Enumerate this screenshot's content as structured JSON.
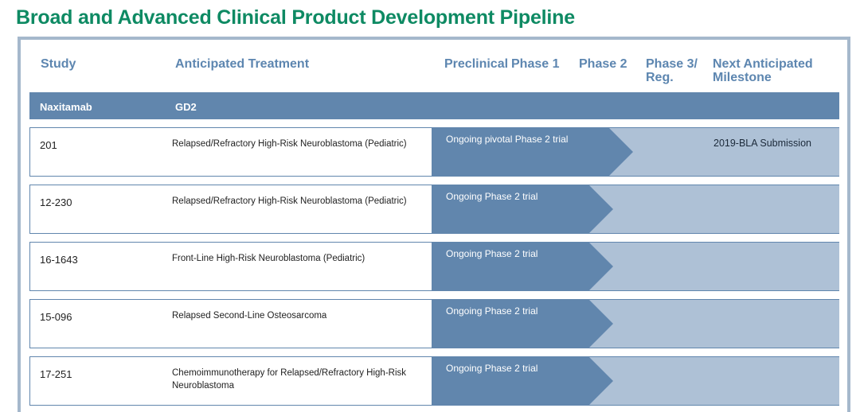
{
  "title": "Broad and Advanced Clinical Product Development Pipeline",
  "columns": {
    "study": "Study",
    "treatment": "Anticipated Treatment",
    "preclinical": "Preclinical",
    "phase1": "Phase 1",
    "phase2": "Phase 2",
    "phase3_line1": "Phase 3/",
    "phase3_line2": "Reg.",
    "milestone_line1": "Next Anticipated",
    "milestone_line2": "Milestone"
  },
  "agent": {
    "name": "Naxitamab",
    "target": "GD2"
  },
  "colors": {
    "title": "#0e8a63",
    "header": "#5d86b0",
    "band": "#6186ad",
    "progress": "#6186ad",
    "remaining": "#aec1d6"
  },
  "rows": [
    {
      "study": "201",
      "treatment": "Relapsed/Refractory High-Risk Neuroblastoma (Pediatric)",
      "status": "Ongoing pivotal Phase 2 trial",
      "milestone": "2019-BLA Submission",
      "stage": "phase2-plus"
    },
    {
      "study": "12-230",
      "treatment": "Relapsed/Refractory High-Risk Neuroblastoma (Pediatric)",
      "status": "Ongoing Phase 2 trial",
      "milestone": "",
      "stage": "phase2"
    },
    {
      "study": "16-1643",
      "treatment": "Front-Line High-Risk Neuroblastoma (Pediatric)",
      "status": "Ongoing Phase 2 trial",
      "milestone": "",
      "stage": "phase2"
    },
    {
      "study": "15-096",
      "treatment": "Relapsed Second-Line Osteosarcoma",
      "status": "Ongoing Phase 2 trial",
      "milestone": "",
      "stage": "phase2"
    },
    {
      "study": "17-251",
      "treatment": "Chemoimmunotherapy for Relapsed/Refractory High-Risk Neuroblastoma",
      "status": "Ongoing Phase 2 trial",
      "milestone": "",
      "stage": "phase2"
    }
  ]
}
